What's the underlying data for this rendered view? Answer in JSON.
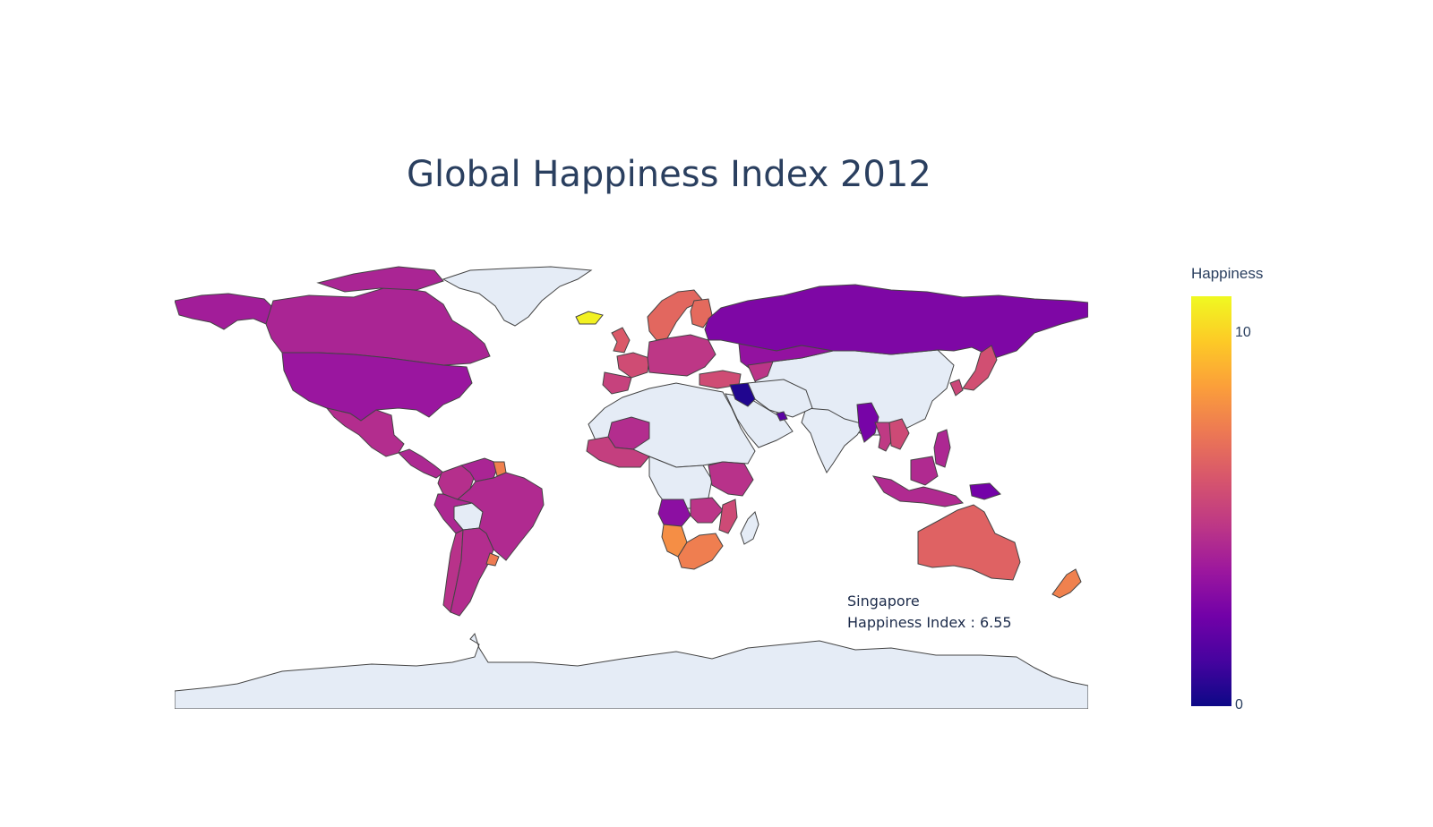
{
  "title": "Global Happiness Index 2012",
  "hover": {
    "country": "Singapore",
    "text": "Happiness Index : 6.55"
  },
  "colorbar": {
    "title": "Happiness",
    "min": 0,
    "max": 11,
    "ticks": [
      {
        "value": 10,
        "label": "10"
      },
      {
        "value": 0,
        "label": "0"
      }
    ],
    "colorscale": [
      "#0d0887",
      "#46039f",
      "#7201a8",
      "#9c179e",
      "#bd3786",
      "#d8576b",
      "#ed7953",
      "#fb9f3a",
      "#fdca26",
      "#f0f921"
    ]
  },
  "colors": {
    "no_data": "#e5ecf6",
    "border": "#444444",
    "title": "#2a3f5f"
  },
  "chart_data": {
    "type": "choropleth",
    "title": "Global Happiness Index 2012",
    "projection": "equirectangular",
    "colorbar_title": "Happiness",
    "range": [
      0,
      11
    ],
    "hover": {
      "name": "Singapore",
      "value": 6.55
    },
    "regions": [
      {
        "name": "Canada",
        "value": 4.2
      },
      {
        "name": "Alaska",
        "value": 3.9
      },
      {
        "name": "USA",
        "value": 3.6
      },
      {
        "name": "Mexico",
        "value": 4.5
      },
      {
        "name": "Central America",
        "value": 4.3
      },
      {
        "name": "Colombia",
        "value": 4.6
      },
      {
        "name": "Venezuela",
        "value": 4.2
      },
      {
        "name": "Suriname",
        "value": 7.6
      },
      {
        "name": "Brazil",
        "value": 4.4
      },
      {
        "name": "Peru",
        "value": 4.3
      },
      {
        "name": "Chile",
        "value": 4.7
      },
      {
        "name": "Argentina",
        "value": 4.5
      },
      {
        "name": "Uruguay",
        "value": 7.4
      },
      {
        "name": "Iceland",
        "value": 10.8
      },
      {
        "name": "Scandinavia",
        "value": 6.7
      },
      {
        "name": "Finland",
        "value": 6.8
      },
      {
        "name": "UK",
        "value": 6.2
      },
      {
        "name": "France",
        "value": 5.7
      },
      {
        "name": "Iberia",
        "value": 5.3
      },
      {
        "name": "Central Europe",
        "value": 4.9
      },
      {
        "name": "Turkey",
        "value": 5.7
      },
      {
        "name": "Russia",
        "value": 2.8
      },
      {
        "name": "Kazakhstan",
        "value": 3.4
      },
      {
        "name": "Central Asia",
        "value": 4.8
      },
      {
        "name": "Iraq",
        "value": 0.4
      },
      {
        "name": "UAE",
        "value": 1.8
      },
      {
        "name": "Japan",
        "value": 5.8
      },
      {
        "name": "Korea",
        "value": 5.5
      },
      {
        "name": "Myanmar",
        "value": 2.6
      },
      {
        "name": "Thailand",
        "value": 5.0
      },
      {
        "name": "Indochina",
        "value": 5.6
      },
      {
        "name": "Philippines",
        "value": 4.3
      },
      {
        "name": "Indonesia",
        "value": 4.4
      },
      {
        "name": "Papua New Guinea",
        "value": 2.5
      },
      {
        "name": "Australia",
        "value": 6.5
      },
      {
        "name": "New Zealand",
        "value": 7.6
      },
      {
        "name": "Sahel",
        "value": 4.5
      },
      {
        "name": "West Africa",
        "value": 5.2
      },
      {
        "name": "East Africa",
        "value": 4.7
      },
      {
        "name": "Angola",
        "value": 3.2
      },
      {
        "name": "Zambia",
        "value": 4.8
      },
      {
        "name": "Mozambique",
        "value": 5.6
      },
      {
        "name": "Namibia",
        "value": 8.0
      },
      {
        "name": "South Africa",
        "value": 7.5
      }
    ]
  }
}
